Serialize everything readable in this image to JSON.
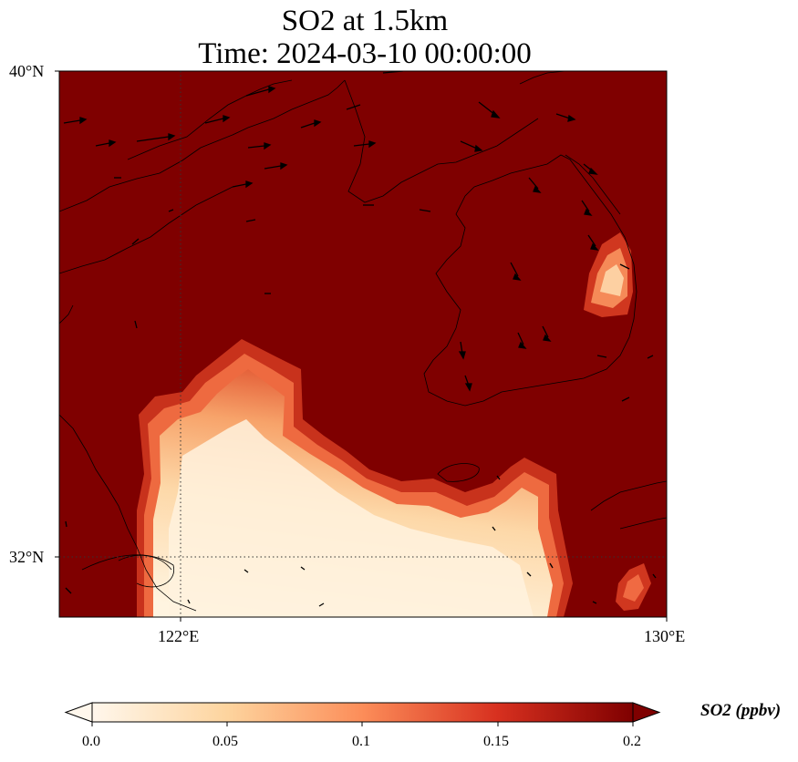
{
  "title": {
    "line1": "SO2 at 1.5km",
    "line2": "Time: 2024-03-10 00:00:00"
  },
  "map": {
    "background_color": "#7f0000",
    "lat_ticks": [
      "40°N",
      "32°N"
    ],
    "lon_ticks": [
      "122°E",
      "130°E"
    ],
    "gridlines": "dotted"
  },
  "colorbar": {
    "label": "SO2 (ppbv)",
    "ticks": [
      "0.0",
      "0.05",
      "0.1",
      "0.15",
      "0.2"
    ],
    "colors": [
      "#fff7ec",
      "#fdd49e",
      "#fc8d59",
      "#d7301f",
      "#7f0000"
    ],
    "extend": "both"
  }
}
